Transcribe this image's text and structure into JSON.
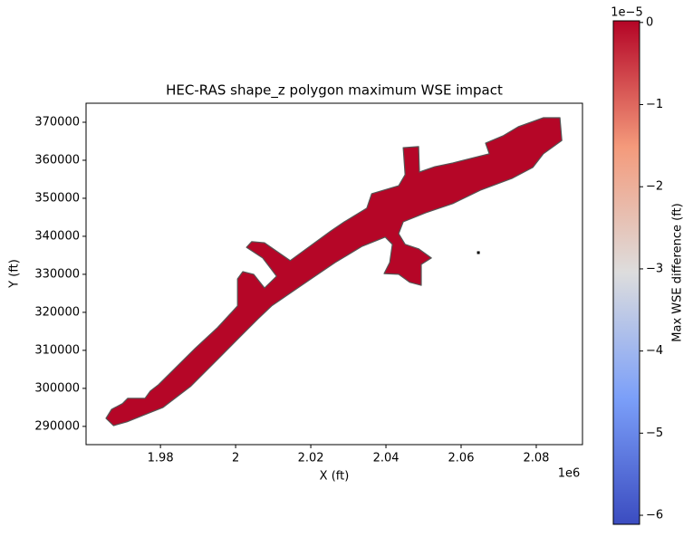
{
  "chart_data": {
    "type": "polygon-map",
    "title": "HEC-RAS shape_z polygon maximum WSE impact",
    "x_label": "X (ft)",
    "y_label": "Y (ft)",
    "x_offset_label": "1e6",
    "xlim": [
      1.9602,
      2.0923
    ],
    "xticks": [
      1.98,
      2.0,
      2.02,
      2.04,
      2.06,
      2.08
    ],
    "ylim": [
      285200,
      375000
    ],
    "yticks": [
      290000,
      300000,
      310000,
      320000,
      330000,
      340000,
      350000,
      360000,
      370000
    ],
    "shape": {
      "value": 0,
      "edge_color": "#555555",
      "x": [
        1.9655,
        1.967,
        1.9699,
        1.9713,
        1.9759,
        1.9773,
        1.9795,
        1.9843,
        1.9892,
        1.9952,
        2.0005,
        2.0005,
        2.0019,
        2.0048,
        2.0077,
        2.0109,
        2.0072,
        2.0029,
        2.0043,
        2.0077,
        2.0145,
        2.0253,
        2.0289,
        2.0349,
        2.0362,
        2.0434,
        2.0451,
        2.0446,
        2.0487,
        2.0489,
        2.053,
        2.0578,
        2.0675,
        2.0665,
        2.0711,
        2.0752,
        2.0819,
        2.0863,
        2.0868,
        2.0819,
        2.0791,
        2.0735,
        2.0651,
        2.0578,
        2.0506,
        2.0446,
        2.0434,
        2.0451,
        2.0487,
        2.0521,
        2.0494,
        2.0494,
        2.0463,
        2.0434,
        2.0395,
        2.041,
        2.0417,
        2.0398,
        2.0337,
        2.0265,
        2.0193,
        2.0096,
        2.006,
        2.0012,
        1.9952,
        1.988,
        1.9807,
        1.9759,
        1.9711,
        1.9675
      ],
      "y": [
        292100,
        294500,
        296000,
        297400,
        297400,
        299300,
        301000,
        305700,
        310500,
        316000,
        321700,
        328800,
        330700,
        330000,
        326400,
        329500,
        334300,
        337100,
        338600,
        338300,
        333600,
        341400,
        343800,
        347400,
        351200,
        353300,
        356200,
        363300,
        363600,
        356900,
        358300,
        359300,
        361700,
        364500,
        366400,
        368800,
        371200,
        371200,
        365200,
        361700,
        358100,
        355200,
        352100,
        348600,
        346200,
        343800,
        340700,
        337900,
        336700,
        334300,
        332600,
        327100,
        327900,
        330000,
        330200,
        333100,
        337900,
        339800,
        337400,
        333100,
        328300,
        321700,
        318300,
        313600,
        307600,
        300500,
        295000,
        293100,
        291200,
        290200
      ]
    },
    "points": {
      "x": [
        2.0646
      ],
      "y": [
        335700
      ],
      "color": "#000000"
    },
    "colorbar": {
      "label": "Max WSE difference (ft)",
      "offset_label": "1e−5",
      "clim": [
        -6.11,
        0.02
      ],
      "ticks": [
        0,
        {
          "value": -1,
          "label": "−1"
        },
        {
          "value": -2,
          "label": "−2"
        },
        {
          "value": -3,
          "label": "−3"
        },
        {
          "value": -4,
          "label": "−4"
        },
        {
          "value": -5,
          "label": "−5"
        },
        {
          "value": -6,
          "label": "−6"
        }
      ]
    }
  }
}
